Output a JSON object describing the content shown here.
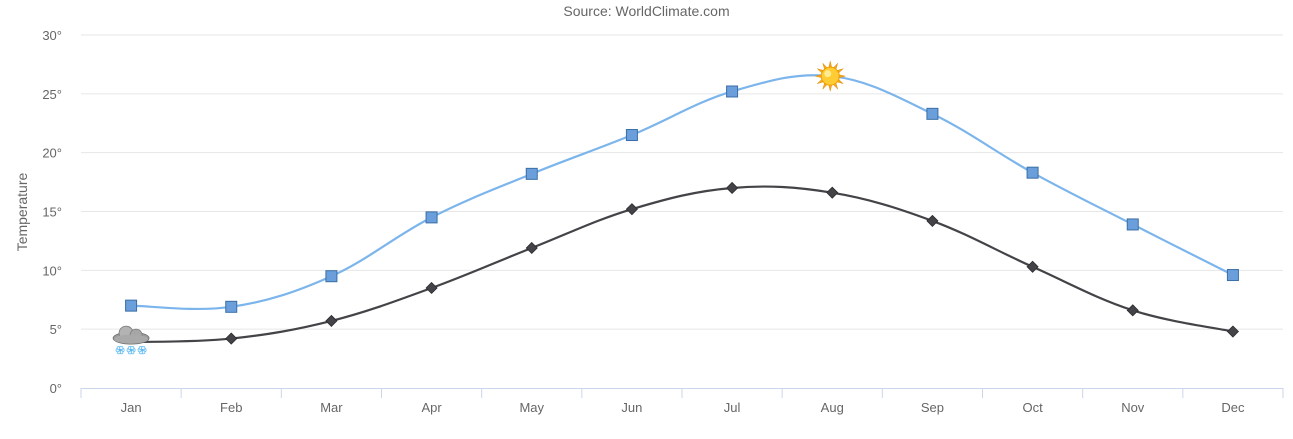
{
  "chart_data": {
    "type": "line",
    "subtitle": "Source: WorldClimate.com",
    "ylabel": "Temperature",
    "ylim": [
      0,
      30
    ],
    "y_ticks": [
      0,
      5,
      10,
      15,
      20,
      25,
      30
    ],
    "y_tick_labels": [
      "0°",
      "5°",
      "10°",
      "15°",
      "20°",
      "25°",
      "30°"
    ],
    "categories": [
      "Jan",
      "Feb",
      "Mar",
      "Apr",
      "May",
      "Jun",
      "Jul",
      "Aug",
      "Sep",
      "Oct",
      "Nov",
      "Dec"
    ],
    "grid": true,
    "legend": "none",
    "series": [
      {
        "marker": "square",
        "color": "#7cb5ec",
        "marker_fill": "#6a9fdb",
        "values": [
          7.0,
          6.9,
          9.5,
          14.5,
          18.2,
          21.5,
          25.2,
          26.5,
          23.3,
          18.3,
          13.9,
          9.6
        ],
        "special_marker": {
          "index": 7,
          "icon": "sun-icon"
        }
      },
      {
        "marker": "diamond",
        "color": "#434348",
        "values": [
          3.9,
          4.2,
          5.7,
          8.5,
          11.9,
          15.2,
          17.0,
          16.6,
          14.2,
          10.3,
          6.6,
          4.8
        ],
        "special_marker": {
          "index": 0,
          "icon": "snow-cloud-icon"
        }
      }
    ]
  }
}
